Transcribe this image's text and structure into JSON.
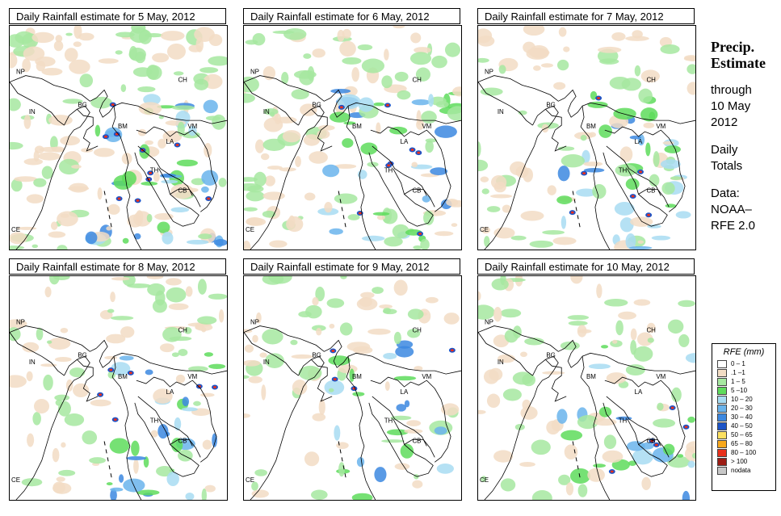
{
  "panels": [
    {
      "title": "Daily Rainfall estimate for  5 May, 2012",
      "intensity": 0.95
    },
    {
      "title": "Daily Rainfall estimate for  6 May, 2012",
      "intensity": 0.8
    },
    {
      "title": "Daily Rainfall estimate for  7 May, 2012",
      "intensity": 0.6
    },
    {
      "title": "Daily Rainfall estimate for  8 May, 2012",
      "intensity": 0.55
    },
    {
      "title": "Daily Rainfall estimate for  9 May, 2012",
      "intensity": 0.4
    },
    {
      "title": "Daily Rainfall estimate for  10 May, 2012",
      "intensity": 0.45
    }
  ],
  "country_labels": [
    "NP",
    "CH",
    "IN",
    "BG",
    "BM",
    "VM",
    "LA",
    "TH",
    "CB",
    "CE"
  ],
  "side": {
    "heading1": "Precip.",
    "heading2": "Estimate",
    "through": "through",
    "date1": "10 May",
    "date2": "2012",
    "daily1": "Daily",
    "daily2": "Totals",
    "data1": "Data:",
    "data2": "NOAA–",
    "data3": "RFE 2.0"
  },
  "legend": {
    "title": "RFE (mm)",
    "items": [
      {
        "label": "0 – 1",
        "color": "#ffffff"
      },
      {
        "label": ".1 –1",
        "color": "#f2dcc4"
      },
      {
        "label": "1 – 5",
        "color": "#a6e8a0"
      },
      {
        "label": "5 –10",
        "color": "#5edc5c"
      },
      {
        "label": "10 – 20",
        "color": "#a8dcf2"
      },
      {
        "label": "20 – 30",
        "color": "#6ab4ec"
      },
      {
        "label": "30 – 40",
        "color": "#3c88e0"
      },
      {
        "label": "40 – 50",
        "color": "#1c54c8"
      },
      {
        "label": "50 – 65",
        "color": "#fce060"
      },
      {
        "label": "65 – 80",
        "color": "#f8a81c"
      },
      {
        "label": "80 – 100",
        "color": "#e8301c"
      },
      {
        "label": "> 100",
        "color": "#9c1c14"
      },
      {
        "label": "nodata",
        "color": "#c8c8c8"
      }
    ]
  }
}
